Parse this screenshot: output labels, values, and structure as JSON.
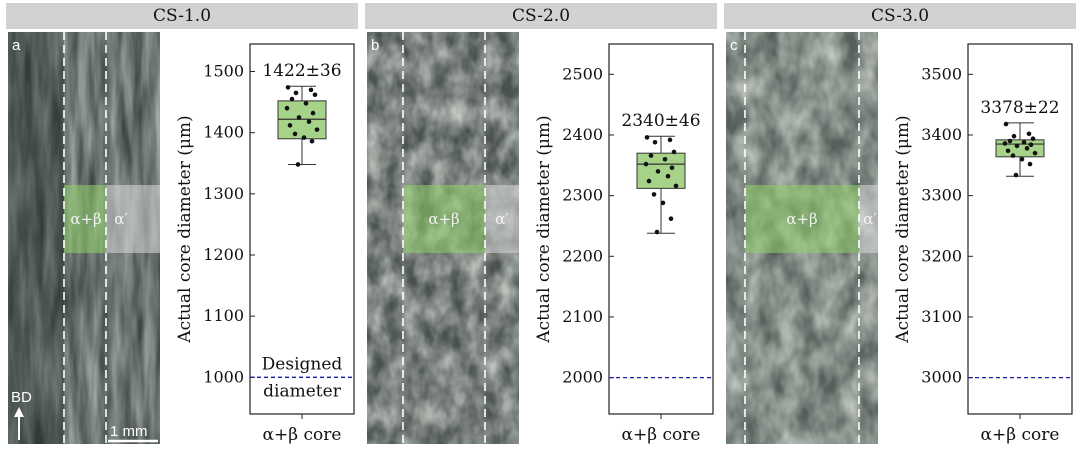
{
  "panels": [
    {
      "header": "CS-1.0",
      "letter": "a",
      "region_core": "α+β",
      "region_outer": "α′"
    },
    {
      "header": "CS-2.0",
      "letter": "b",
      "region_core": "α+β",
      "region_outer": "α′"
    },
    {
      "header": "CS-3.0",
      "letter": "c",
      "region_core": "α+β",
      "region_outer": "α′"
    }
  ],
  "micrograph_marks": {
    "build_direction": "BD",
    "scale_bar": "1 mm"
  },
  "colors": {
    "box_fill": "#a6d389",
    "box_stroke": "#333333",
    "point": "#111111",
    "designed_line": "#1a1aa6",
    "core_overlay": "#8fd16a",
    "outer_overlay": "#d9d9d9",
    "header_bg": "#d2d2d2"
  },
  "chart_data": [
    {
      "type": "box",
      "ylabel": "Actual core diameter (μm)",
      "categories": [
        "α+β core"
      ],
      "ylim": [
        940,
        1545
      ],
      "yticks": [
        1000,
        1100,
        1200,
        1300,
        1400,
        1500
      ],
      "box": {
        "whisker_low": 1348,
        "q1": 1390,
        "median": 1422,
        "q3": 1452,
        "whisker_high": 1476
      },
      "annotation": "1422±36",
      "points": [
        1474,
        1470,
        1465,
        1462,
        1455,
        1448,
        1440,
        1432,
        1425,
        1418,
        1412,
        1405,
        1398,
        1392,
        1386,
        1348
      ],
      "designed_diameter": 1000,
      "designed_label": [
        "Designed",
        "diameter"
      ]
    },
    {
      "type": "box",
      "ylabel": "Actual core diameter (μm)",
      "categories": [
        "α+β core"
      ],
      "ylim": [
        1940,
        2550
      ],
      "yticks": [
        2000,
        2100,
        2200,
        2300,
        2400,
        2500
      ],
      "box": {
        "whisker_low": 2238,
        "q1": 2312,
        "median": 2352,
        "q3": 2370,
        "whisker_high": 2398
      },
      "annotation": "2340±46",
      "points": [
        2396,
        2392,
        2388,
        2372,
        2366,
        2360,
        2352,
        2346,
        2340,
        2332,
        2324,
        2316,
        2302,
        2288,
        2262,
        2240
      ],
      "designed_diameter": 2000
    },
    {
      "type": "box",
      "ylabel": "Actual core diameter (μm)",
      "categories": [
        "α+β core"
      ],
      "ylim": [
        2940,
        3550
      ],
      "yticks": [
        3000,
        3100,
        3200,
        3300,
        3400,
        3500
      ],
      "box": {
        "whisker_low": 3332,
        "q1": 3364,
        "median": 3385,
        "q3": 3392,
        "whisker_high": 3420
      },
      "annotation": "3378±22",
      "points": [
        3418,
        3402,
        3398,
        3394,
        3390,
        3388,
        3386,
        3384,
        3382,
        3378,
        3374,
        3370,
        3366,
        3360,
        3352,
        3334
      ],
      "designed_diameter": 3000
    }
  ]
}
